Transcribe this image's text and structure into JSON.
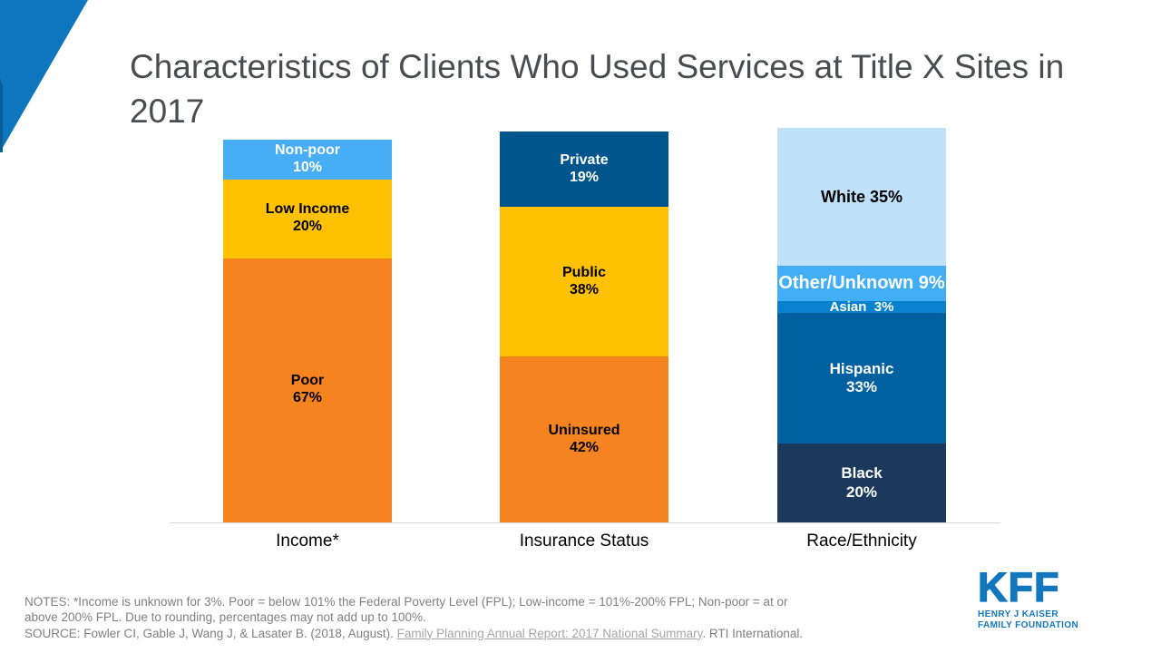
{
  "slide": {
    "title": "Characteristics of Clients Who Used Services at Title X Sites in 2017"
  },
  "palette": {
    "corner_blue": "#0D76BE",
    "corner_dark_blue": "#0A5E94",
    "title_gray": "#4A4C4F",
    "baseline_gray": "#D9D9D9",
    "notes_gray": "#808080",
    "link_gray": "#A6A6A6",
    "logo_blue": "#1377BE"
  },
  "chart_data": {
    "type": "bar",
    "variant": "stacked-column-percent",
    "title": "Characteristics of Clients Who Used Services at Title X Sites in 2017",
    "ylim": [
      0,
      100
    ],
    "grid": false,
    "legend": "labels-inside-segments",
    "categories": [
      "Income*",
      "Insurance Status",
      "Race/Ethnicity"
    ],
    "bars": [
      {
        "category": "Income*",
        "segments_top_to_bottom": [
          {
            "label": "Non-poor",
            "display": "10%",
            "value": 10,
            "color": "#47ADF5",
            "text_color": "#FFFFFF",
            "inline": false,
            "font_px": 16
          },
          {
            "label": "Low Income",
            "display": "20%",
            "value": 20,
            "color": "#FFC103",
            "text_color": "#000000",
            "inline": false,
            "font_px": 16
          },
          {
            "label": "Poor",
            "display": "67%",
            "value": 67,
            "color": "#F5831F",
            "text_color": "#000000",
            "inline": false,
            "font_px": 16
          }
        ]
      },
      {
        "category": "Insurance Status",
        "segments_top_to_bottom": [
          {
            "label": "Private",
            "display": "19%",
            "value": 19,
            "color": "#00568C",
            "text_color": "#FFFFFF",
            "inline": false,
            "font_px": 16
          },
          {
            "label": "Public",
            "display": "38%",
            "value": 38,
            "color": "#FFC103",
            "text_color": "#000000",
            "inline": false,
            "font_px": 16
          },
          {
            "label": "Uninsured",
            "display": "42%",
            "value": 42,
            "color": "#F5831F",
            "text_color": "#000000",
            "inline": false,
            "font_px": 16
          }
        ]
      },
      {
        "category": "Race/Ethnicity",
        "segments_top_to_bottom": [
          {
            "label": "White",
            "display": "35%",
            "value": 35,
            "color": "#BFE1FA",
            "text_color": "#000000",
            "inline": true,
            "font_px": 18
          },
          {
            "label": "Other/Unknown",
            "display": "9%",
            "value": 9,
            "color": "#42AEF5",
            "text_color": "#FFFFFF",
            "inline": true,
            "font_px": 20
          },
          {
            "label": "Asian",
            "display": "3%",
            "value": 3,
            "color": "#0882CC",
            "text_color": "#FFFFFF",
            "inline": true,
            "font_px": 15
          },
          {
            "label": "Hispanic",
            "display": "33%",
            "value": 33,
            "color": "#01609F",
            "text_color": "#FFFFFF",
            "inline": false,
            "font_px": 17
          },
          {
            "label": "Black",
            "display": "20%",
            "value": 20,
            "color": "#1A395B",
            "text_color": "#FFFFFF",
            "inline": false,
            "font_px": 17
          }
        ]
      }
    ]
  },
  "notes": {
    "line1": "NOTES: *Income is unknown for 3%.  Poor = below 101% the Federal Poverty Level (FPL); Low-income = 101%-200% FPL; Non-poor = at or",
    "line2": "above 200% FPL. Due to rounding,  percentages may not add up to 100%.",
    "source_prefix": "SOURCE: Fowler CI, Gable J, Wang J, & Lasater B. (2018, August). ",
    "source_link": "Family Planning Annual Report: 2017 National Summary",
    "source_suffix": ". RTI International."
  },
  "logo": {
    "mark": "KFF",
    "line1": "HENRY J KAISER",
    "line2": "FAMILY FOUNDATION"
  }
}
